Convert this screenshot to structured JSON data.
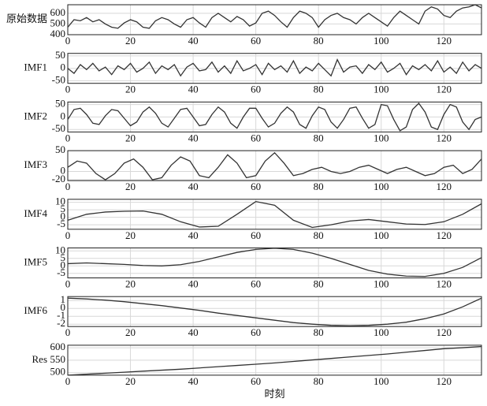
{
  "chart_data": [
    {
      "type": "line",
      "ylabel": "原始数据",
      "x": [
        0,
        2,
        4,
        6,
        8,
        10,
        12,
        14,
        16,
        18,
        20,
        22,
        24,
        26,
        28,
        30,
        32,
        34,
        36,
        38,
        40,
        42,
        44,
        46,
        48,
        50,
        52,
        54,
        56,
        58,
        60,
        62,
        64,
        66,
        68,
        70,
        72,
        74,
        76,
        78,
        80,
        82,
        84,
        86,
        88,
        90,
        92,
        94,
        96,
        98,
        100,
        102,
        104,
        106,
        108,
        110,
        112,
        114,
        116,
        118,
        120,
        122,
        124,
        126,
        128,
        130,
        132
      ],
      "values": [
        470,
        540,
        530,
        560,
        520,
        540,
        500,
        470,
        460,
        510,
        540,
        520,
        470,
        460,
        530,
        560,
        540,
        500,
        470,
        540,
        560,
        510,
        470,
        560,
        600,
        560,
        520,
        570,
        540,
        480,
        510,
        600,
        620,
        580,
        520,
        470,
        560,
        620,
        600,
        560,
        470,
        540,
        580,
        600,
        560,
        540,
        500,
        560,
        600,
        560,
        520,
        480,
        560,
        620,
        580,
        540,
        500,
        620,
        660,
        640,
        580,
        560,
        620,
        650,
        660,
        680,
        650
      ],
      "xlim": [
        0,
        132
      ],
      "ylim": [
        400,
        680
      ],
      "xticks": [
        0,
        20,
        40,
        60,
        80,
        100,
        120
      ],
      "yticks": [
        400,
        500,
        600
      ],
      "grid": true,
      "color": "#333333"
    },
    {
      "type": "line",
      "ylabel": "IMF1",
      "x": [
        0,
        2,
        4,
        6,
        8,
        10,
        12,
        14,
        16,
        18,
        20,
        22,
        24,
        26,
        28,
        30,
        32,
        34,
        36,
        38,
        40,
        42,
        44,
        46,
        48,
        50,
        52,
        54,
        56,
        58,
        60,
        62,
        64,
        66,
        68,
        70,
        72,
        74,
        76,
        78,
        80,
        82,
        84,
        86,
        88,
        90,
        92,
        94,
        96,
        98,
        100,
        102,
        104,
        106,
        108,
        110,
        112,
        114,
        116,
        118,
        120,
        122,
        124,
        126,
        128,
        130,
        132
      ],
      "values": [
        0,
        -20,
        15,
        -5,
        20,
        -10,
        5,
        -25,
        10,
        -5,
        20,
        -15,
        0,
        25,
        -20,
        10,
        -5,
        15,
        -30,
        5,
        20,
        -10,
        -5,
        25,
        -15,
        10,
        -20,
        30,
        -10,
        0,
        15,
        -25,
        20,
        -5,
        10,
        -15,
        30,
        -20,
        5,
        -10,
        20,
        -5,
        -30,
        35,
        -15,
        5,
        10,
        -20,
        15,
        -5,
        25,
        -15,
        0,
        20,
        -25,
        10,
        -5,
        15,
        -10,
        30,
        -15,
        5,
        -20,
        25,
        -10,
        15,
        0
      ],
      "xlim": [
        0,
        132
      ],
      "ylim": [
        -60,
        60
      ],
      "xticks": [
        0,
        20,
        40,
        60,
        80,
        100,
        120
      ],
      "yticks": [
        -50,
        0,
        50
      ],
      "grid": true,
      "color": "#333333"
    },
    {
      "type": "line",
      "ylabel": "IMF2",
      "x": [
        0,
        2,
        4,
        6,
        8,
        10,
        12,
        14,
        16,
        18,
        20,
        22,
        24,
        26,
        28,
        30,
        32,
        34,
        36,
        38,
        40,
        42,
        44,
        46,
        48,
        50,
        52,
        54,
        56,
        58,
        60,
        62,
        64,
        66,
        68,
        70,
        72,
        74,
        76,
        78,
        80,
        82,
        84,
        86,
        88,
        90,
        92,
        94,
        96,
        98,
        100,
        102,
        104,
        106,
        108,
        110,
        112,
        114,
        116,
        118,
        120,
        122,
        124,
        126,
        128,
        130,
        132
      ],
      "values": [
        -10,
        30,
        35,
        10,
        -25,
        -30,
        5,
        30,
        25,
        -5,
        -35,
        -20,
        20,
        40,
        15,
        -25,
        -40,
        -5,
        30,
        35,
        0,
        -35,
        -30,
        10,
        40,
        20,
        -25,
        -45,
        0,
        35,
        35,
        -5,
        -40,
        -25,
        15,
        40,
        20,
        -30,
        -45,
        5,
        40,
        30,
        -20,
        -45,
        -10,
        35,
        40,
        -5,
        -45,
        -30,
        50,
        45,
        -10,
        -55,
        -40,
        30,
        55,
        20,
        -40,
        -50,
        10,
        50,
        40,
        -20,
        -50,
        -10,
        0
      ],
      "xlim": [
        0,
        132
      ],
      "ylim": [
        -60,
        60
      ],
      "xticks": [
        0,
        20,
        40,
        60,
        80,
        100,
        120
      ],
      "yticks": [
        -50,
        0,
        50
      ],
      "grid": true,
      "color": "#333333"
    },
    {
      "type": "line",
      "ylabel": "IMF3",
      "x": [
        0,
        3,
        6,
        9,
        12,
        15,
        18,
        21,
        24,
        27,
        30,
        33,
        36,
        39,
        42,
        45,
        48,
        51,
        54,
        57,
        60,
        63,
        66,
        69,
        72,
        75,
        78,
        81,
        84,
        87,
        90,
        93,
        96,
        99,
        102,
        105,
        108,
        111,
        114,
        117,
        120,
        123,
        126,
        129,
        132
      ],
      "values": [
        10,
        25,
        20,
        -5,
        -20,
        -5,
        20,
        30,
        10,
        -20,
        -15,
        15,
        35,
        25,
        -10,
        -15,
        10,
        40,
        20,
        -15,
        -10,
        25,
        45,
        20,
        -10,
        -5,
        5,
        10,
        0,
        -5,
        0,
        10,
        15,
        5,
        -5,
        5,
        10,
        0,
        -10,
        -5,
        10,
        15,
        -5,
        5,
        30
      ],
      "xlim": [
        0,
        132
      ],
      "ylim": [
        -22,
        50
      ],
      "xticks": [
        0,
        20,
        40,
        60,
        80,
        100,
        120
      ],
      "yticks": [
        -20,
        0,
        50
      ],
      "grid": true,
      "color": "#333333"
    },
    {
      "type": "line",
      "ylabel": "IMF4",
      "x": [
        0,
        6,
        12,
        18,
        24,
        30,
        36,
        42,
        48,
        54,
        60,
        66,
        72,
        78,
        84,
        90,
        96,
        102,
        108,
        114,
        120,
        126,
        132
      ],
      "values": [
        -2,
        2,
        3.5,
        4,
        4.2,
        2,
        -3,
        -6.5,
        -6,
        2,
        10.5,
        8,
        -2,
        -6.8,
        -5,
        -2.5,
        -1.5,
        -3,
        -4.5,
        -4.8,
        -3,
        2,
        9
      ],
      "xlim": [
        0,
        132
      ],
      "ylim": [
        -8,
        12
      ],
      "xticks": [
        0,
        20,
        40,
        60,
        80,
        100,
        120
      ],
      "yticks": [
        -5,
        0,
        5,
        10
      ],
      "grid": true,
      "color": "#333333"
    },
    {
      "type": "line",
      "ylabel": "IMF5",
      "x": [
        0,
        6,
        12,
        18,
        24,
        30,
        36,
        42,
        48,
        54,
        60,
        66,
        72,
        78,
        84,
        90,
        96,
        102,
        108,
        114,
        120,
        126,
        132
      ],
      "values": [
        1.5,
        2,
        1.5,
        1,
        0.3,
        0,
        0.8,
        3,
        6,
        9,
        11,
        11.8,
        11,
        8.5,
        5,
        1,
        -3,
        -5.5,
        -6.8,
        -7,
        -5,
        -1,
        5.5
      ],
      "xlim": [
        0,
        132
      ],
      "ylim": [
        -8,
        12
      ],
      "xticks": [
        0,
        20,
        40,
        60,
        80,
        100,
        120
      ],
      "yticks": [
        -5,
        0,
        5,
        10
      ],
      "grid": true,
      "color": "#333333"
    },
    {
      "type": "line",
      "ylabel": "IMF6",
      "x": [
        0,
        6,
        12,
        18,
        24,
        30,
        36,
        42,
        48,
        54,
        60,
        66,
        72,
        78,
        84,
        90,
        96,
        102,
        108,
        114,
        120,
        126,
        132
      ],
      "values": [
        1.3,
        1.2,
        1.05,
        0.85,
        0.6,
        0.35,
        0.05,
        -0.25,
        -0.6,
        -0.9,
        -1.2,
        -1.5,
        -1.8,
        -2.0,
        -2.15,
        -2.2,
        -2.15,
        -2.0,
        -1.75,
        -1.3,
        -0.7,
        0.2,
        1.3
      ],
      "xlim": [
        0,
        132
      ],
      "ylim": [
        -2.3,
        1.5
      ],
      "xticks": [
        0,
        20,
        40,
        60,
        80,
        100,
        120
      ],
      "yticks": [
        -2,
        -1,
        0,
        1
      ],
      "grid": true,
      "color": "#333333"
    },
    {
      "type": "line",
      "ylabel": "Res",
      "xlabel": "时刻",
      "x": [
        0,
        6,
        12,
        18,
        24,
        30,
        36,
        42,
        48,
        54,
        60,
        66,
        72,
        78,
        84,
        90,
        96,
        102,
        108,
        114,
        120,
        126,
        132
      ],
      "values": [
        490,
        494,
        498,
        502,
        506,
        510,
        514,
        519,
        524,
        529,
        534,
        539,
        545,
        551,
        557,
        563,
        569,
        575,
        582,
        589,
        596,
        600,
        605
      ],
      "xlim": [
        0,
        132
      ],
      "ylim": [
        490,
        610
      ],
      "xticks": [
        0,
        20,
        40,
        60,
        80,
        100,
        120
      ],
      "yticks": [
        500,
        550,
        600
      ],
      "grid": true,
      "color": "#333333"
    }
  ]
}
